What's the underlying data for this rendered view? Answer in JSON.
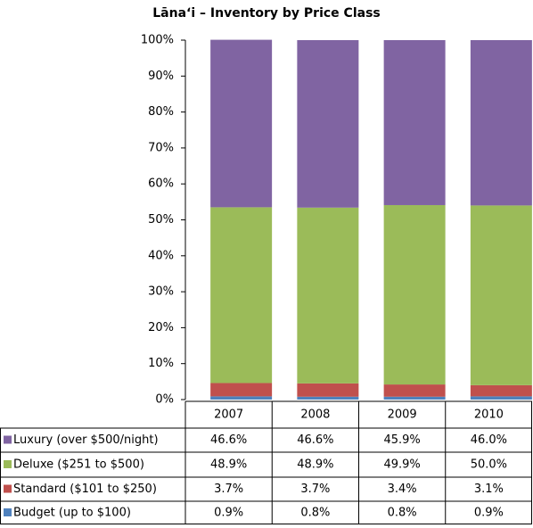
{
  "chart_data": {
    "type": "stacked_bar",
    "title": "Lānaʻi – Inventory by Price Class",
    "categories": [
      "2007",
      "2008",
      "2009",
      "2010"
    ],
    "series": [
      {
        "name": "Luxury (over $500/night)",
        "color": "#8064a2",
        "values": [
          46.6,
          46.6,
          45.9,
          46.0
        ],
        "value_labels": [
          "46.6%",
          "46.6%",
          "45.9%",
          "46.0%"
        ]
      },
      {
        "name": "Deluxe ($251 to $500)",
        "color": "#9bbb59",
        "values": [
          48.9,
          48.9,
          49.9,
          50.0
        ],
        "value_labels": [
          "48.9%",
          "48.9%",
          "49.9%",
          "50.0%"
        ]
      },
      {
        "name": "Standard ($101 to $250)",
        "color": "#c0504d",
        "values": [
          3.7,
          3.7,
          3.4,
          3.1
        ],
        "value_labels": [
          "3.7%",
          "3.7%",
          "3.4%",
          "3.1%"
        ]
      },
      {
        "name": "Budget (up to $100)",
        "color": "#4f81bd",
        "values": [
          0.9,
          0.8,
          0.8,
          0.9
        ],
        "value_labels": [
          "0.9%",
          "0.8%",
          "0.8%",
          "0.9%"
        ]
      }
    ],
    "ylim": [
      0,
      100
    ],
    "yticks": [
      {
        "value": 0,
        "label": "0%"
      },
      {
        "value": 10,
        "label": "10%"
      },
      {
        "value": 20,
        "label": "20%"
      },
      {
        "value": 30,
        "label": "30%"
      },
      {
        "value": 40,
        "label": "40%"
      },
      {
        "value": 50,
        "label": "50%"
      },
      {
        "value": 60,
        "label": "60%"
      },
      {
        "value": 70,
        "label": "70%"
      },
      {
        "value": 80,
        "label": "80%"
      },
      {
        "value": 90,
        "label": "90%"
      },
      {
        "value": 100,
        "label": "100%"
      }
    ],
    "grid": false
  }
}
